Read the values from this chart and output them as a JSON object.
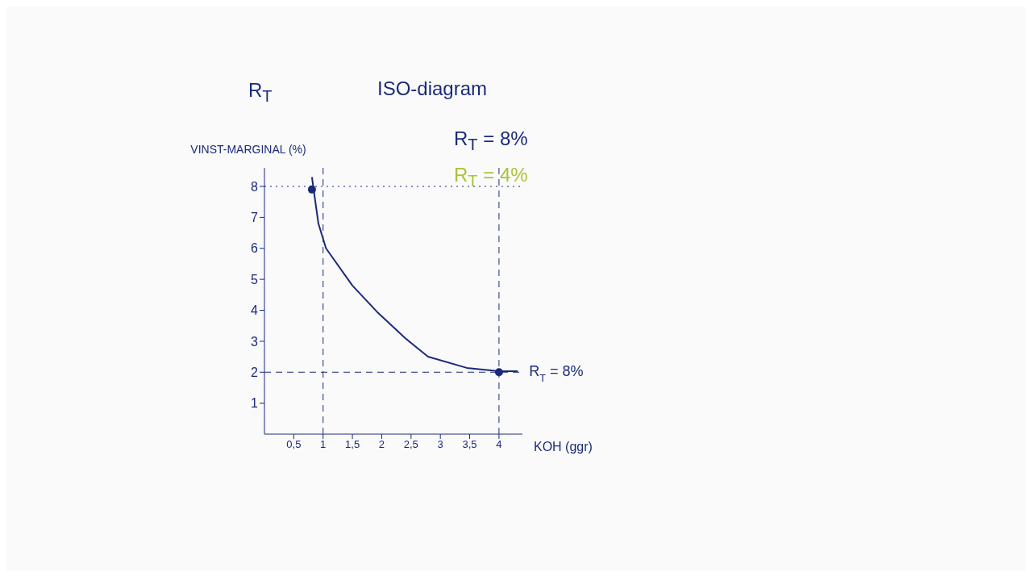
{
  "chart_data": {
    "type": "line",
    "title": "ISO-diagram",
    "xlabel": "KOH (ggr)",
    "ylabel": "VINST-MARGINAL (%)",
    "annotations": [
      "R$_{T}$",
      "R$_{T}$ = 8%",
      "R$_{T}$ = 4%"
    ],
    "series": [
      {
        "name": "R$_{T}$ = 8%",
        "color": "#1a2a7a",
        "x": [
          0.81,
          0.92,
          1.05,
          1.5,
          1.92,
          2.4,
          2.79,
          3.45,
          4,
          4.32
        ],
        "values": [
          8.3,
          6.8,
          6,
          4.8,
          3.95,
          3.1,
          2.5,
          2.14,
          2.03,
          2.03
        ]
      },
      {
        "type": "scatter",
        "color": "#1a2a7a",
        "x": [
          0.81,
          4
        ],
        "values": [
          7.9,
          2
        ]
      }
    ],
    "xlim": [
      0,
      4.4
    ],
    "ylim": [
      0,
      8.6
    ],
    "xticks": [
      {
        "value": 0.5,
        "label": "0,5"
      },
      1,
      {
        "value": 1.5,
        "label": "1,5"
      },
      2,
      {
        "value": 2.5,
        "label": "2,5"
      },
      3,
      {
        "value": 3.5,
        "label": "3,5"
      },
      4
    ],
    "yticks": [
      1,
      2,
      3,
      4,
      5,
      6,
      7,
      8
    ],
    "ref_lines": [
      {
        "axis": "y",
        "value": 8,
        "line_style": "dotted",
        "color": "#1a2a7a"
      },
      {
        "axis": "x",
        "value": 1,
        "line_style": "dashed",
        "color": "#1a2a7a"
      },
      {
        "axis": "y",
        "value": 2,
        "line_style": "dashed",
        "color": "#1a2a7a"
      },
      {
        "axis": "x",
        "value": 4,
        "line_style": "dashed",
        "color": "#1a2a7a"
      }
    ],
    "grid": false,
    "legend": false
  }
}
